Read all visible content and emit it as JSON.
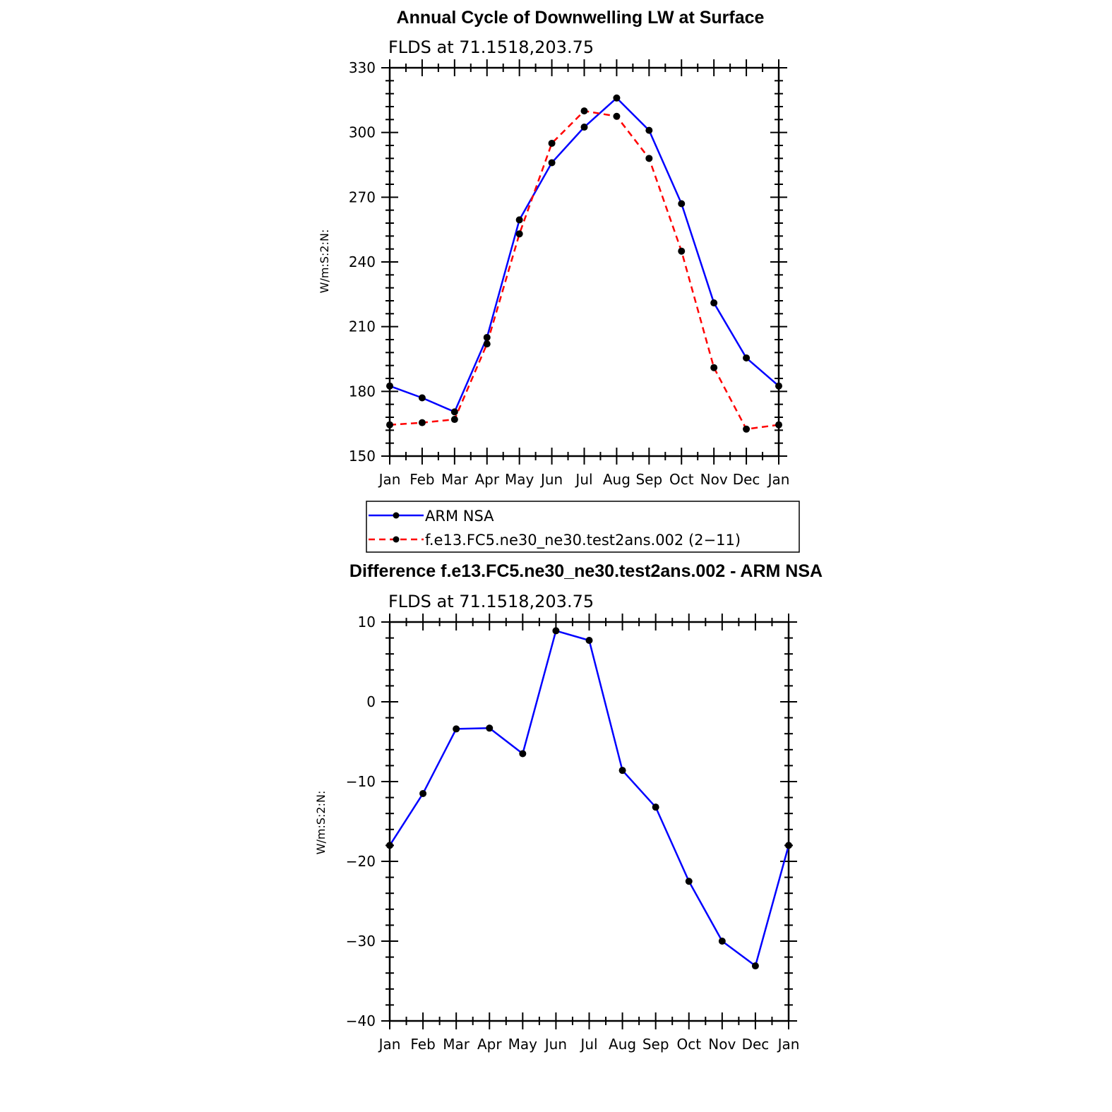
{
  "chart_data": [
    {
      "type": "line",
      "title": "Annual Cycle of Downwelling LW at Surface",
      "subtitle": "FLDS at 71.1518,203.75",
      "xlabel": "",
      "ylabel": "W/m:S:2:N:",
      "categories": [
        "Jan",
        "Feb",
        "Mar",
        "Apr",
        "May",
        "Jun",
        "Jul",
        "Aug",
        "Sep",
        "Oct",
        "Nov",
        "Dec",
        "Jan"
      ],
      "yticks": [
        150,
        180,
        210,
        240,
        270,
        300,
        330
      ],
      "ylim": [
        150,
        330
      ],
      "grid": false,
      "series": [
        {
          "name": "ARM NSA",
          "color": "#0000ff",
          "dash": false,
          "values": [
            182.5,
            177,
            170.5,
            205,
            259.5,
            286,
            302.5,
            316,
            301,
            267,
            221,
            195.5,
            182.5
          ]
        },
        {
          "name": "f.e13.FC5.ne30_ne30.test2ans.002 (2−11)",
          "color": "#ff0000",
          "dash": true,
          "values": [
            164.5,
            165.5,
            167,
            202,
            253,
            295,
            310,
            307.5,
            288,
            245,
            191,
            162.5,
            164.5
          ]
        }
      ],
      "legend_position": "below"
    },
    {
      "type": "line",
      "title": "Difference f.e13.FC5.ne30_ne30.test2ans.002 - ARM NSA",
      "subtitle": "FLDS at 71.1518,203.75",
      "xlabel": "",
      "ylabel": "W/m:S:2:N:",
      "categories": [
        "Jan",
        "Feb",
        "Mar",
        "Apr",
        "May",
        "Jun",
        "Jul",
        "Aug",
        "Sep",
        "Oct",
        "Nov",
        "Dec",
        "Jan"
      ],
      "yticks": [
        -40,
        -30,
        -20,
        -10,
        0,
        10
      ],
      "ytick_labels": [
        "−40",
        "−30",
        "−20",
        "−10",
        "0",
        "10"
      ],
      "ylim": [
        -40,
        10
      ],
      "grid": false,
      "series": [
        {
          "color": "#0000ff",
          "dash": false,
          "values": [
            -18,
            -11.5,
            -3.4,
            -3.3,
            -6.5,
            8.9,
            7.7,
            -8.6,
            -13.2,
            -22.5,
            -30,
            -33.1,
            -18
          ]
        }
      ]
    }
  ]
}
